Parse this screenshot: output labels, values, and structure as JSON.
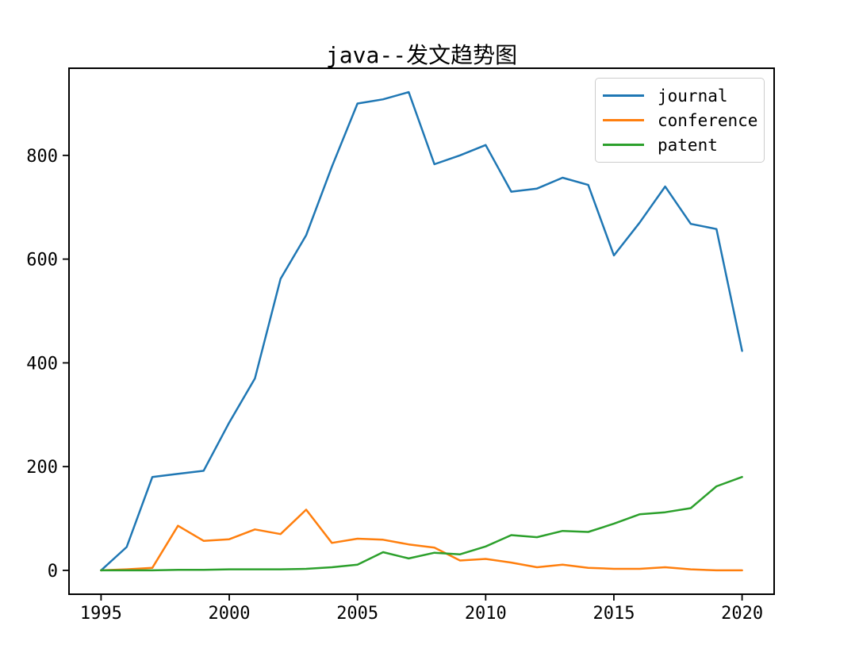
{
  "figure": {
    "title": "java--发文趋势图",
    "background_color": "#ffffff"
  },
  "chart_data": {
    "type": "line",
    "title": "java--发文趋势图",
    "x": [
      1995,
      1996,
      1997,
      1998,
      1999,
      2000,
      2001,
      2002,
      2003,
      2004,
      2005,
      2006,
      2007,
      2008,
      2009,
      2010,
      2011,
      2012,
      2013,
      2014,
      2015,
      2016,
      2017,
      2018,
      2019,
      2020
    ],
    "series": [
      {
        "name": "journal",
        "color": "#1f77b4",
        "values": [
          0,
          45,
          180,
          186,
          192,
          285,
          370,
          562,
          646,
          778,
          900,
          908,
          922,
          783,
          800,
          820,
          730,
          736,
          757,
          743,
          607,
          670,
          740,
          668,
          658,
          423
        ]
      },
      {
        "name": "conference",
        "color": "#ff7f0e",
        "values": [
          0,
          2,
          5,
          86,
          57,
          60,
          79,
          70,
          117,
          53,
          61,
          59,
          50,
          44,
          19,
          22,
          15,
          6,
          11,
          5,
          3,
          3,
          6,
          2,
          0,
          0
        ]
      },
      {
        "name": "patent",
        "color": "#2ca02c",
        "values": [
          0,
          0,
          0,
          1,
          1,
          2,
          2,
          2,
          3,
          6,
          11,
          35,
          23,
          34,
          31,
          46,
          68,
          64,
          76,
          74,
          90,
          108,
          112,
          120,
          162,
          180
        ]
      }
    ],
    "xticks": [
      1995,
      2000,
      2005,
      2010,
      2015,
      2020
    ],
    "yticks": [
      0,
      200,
      400,
      600,
      800
    ],
    "xlim": [
      1993.75,
      2021.25
    ],
    "ylim": [
      -46,
      968
    ],
    "grid": false,
    "legend": {
      "position": "upper-right",
      "entries": [
        "journal",
        "conference",
        "patent"
      ],
      "border_color": "#cccccc"
    },
    "axis_color": "#000000"
  }
}
